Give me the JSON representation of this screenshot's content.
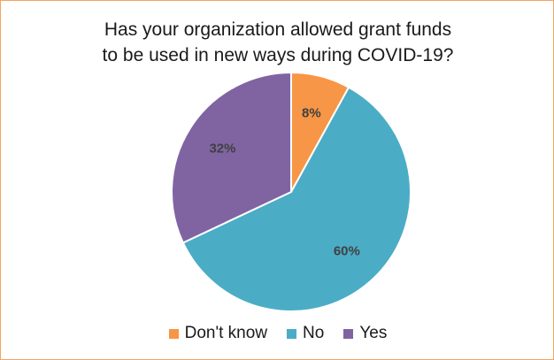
{
  "chart_data": {
    "type": "pie",
    "title_lines": [
      "Has your organization allowed grant funds",
      "to be used in new ways during COVID-19?"
    ],
    "slices": [
      {
        "label": "Don't know",
        "value": 8,
        "display": "8%",
        "color": "#f79646"
      },
      {
        "label": "No",
        "value": 60,
        "display": "60%",
        "color": "#4bacc6"
      },
      {
        "label": "Yes",
        "value": 32,
        "display": "32%",
        "color": "#8064a2"
      }
    ],
    "legend_position": "bottom"
  }
}
